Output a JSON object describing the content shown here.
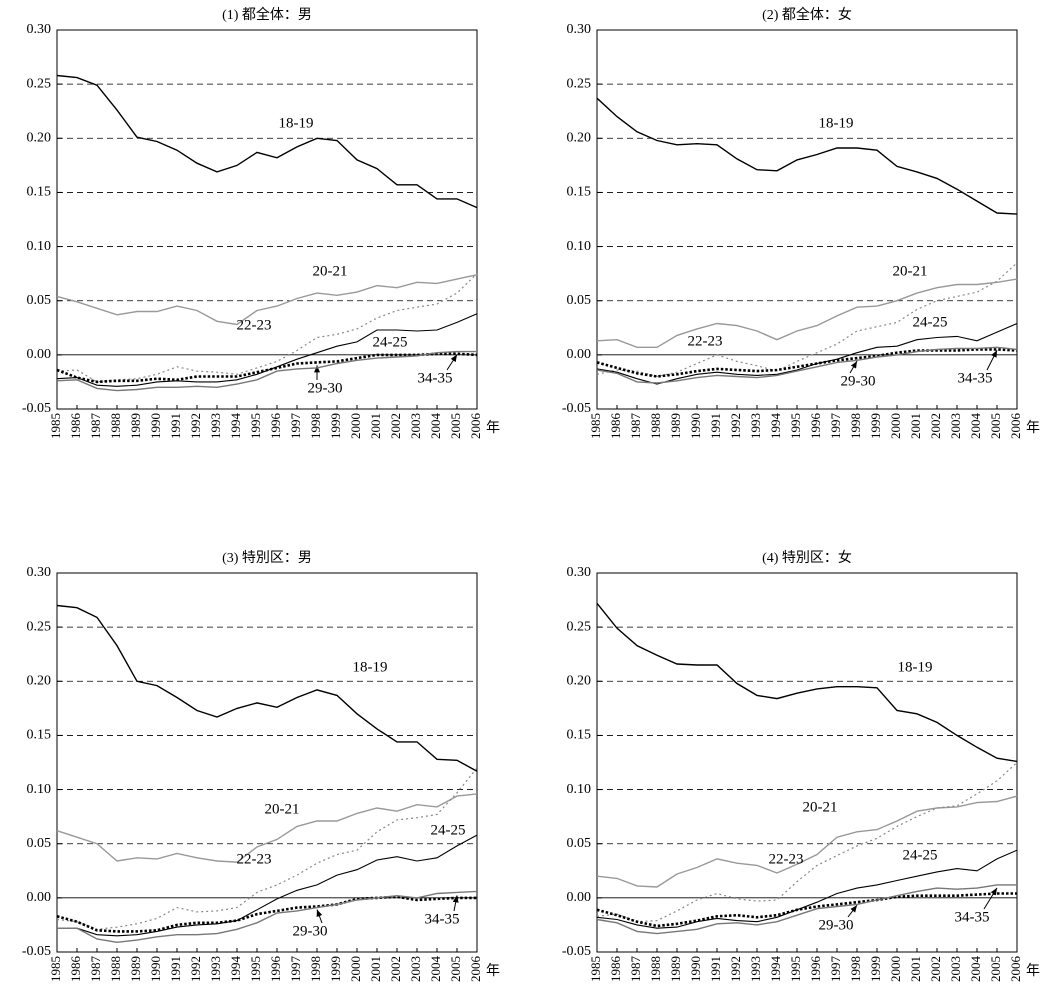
{
  "chart_data": [
    {
      "type": "line",
      "title": "(1) 都全体：男",
      "x_label": "年",
      "categories": [
        "1985",
        "1986",
        "1987",
        "1988",
        "1989",
        "1990",
        "1991",
        "1992",
        "1993",
        "1994",
        "1995",
        "1996",
        "1997",
        "1998",
        "1999",
        "2000",
        "2001",
        "2002",
        "2003",
        "2004",
        "2005",
        "2006"
      ],
      "ylim": [
        -0.05,
        0.3
      ],
      "yticks": [
        -0.05,
        {
          "value": 0,
          "label": "0.00"
        },
        0.05,
        {
          "value": 0.1,
          "label": "0.10"
        },
        0.15,
        {
          "value": 0.2,
          "label": "0.20"
        },
        0.25,
        {
          "value": 0.3,
          "label": "0.30"
        }
      ],
      "grid": true,
      "series": [
        {
          "name": "18-19",
          "color": "#000000",
          "line_style": "solid",
          "values": [
            0.258,
            0.256,
            0.249,
            0.226,
            0.201,
            0.197,
            0.189,
            0.177,
            0.169,
            0.175,
            0.187,
            0.182,
            0.192,
            0.2,
            0.198,
            0.18,
            0.172,
            0.157,
            0.157,
            0.144,
            0.144,
            0.136
          ]
        },
        {
          "name": "20-21",
          "color": "#999999",
          "line_style": "solid",
          "values": [
            0.054,
            0.049,
            0.043,
            0.037,
            0.04,
            0.04,
            0.045,
            0.041,
            0.031,
            0.028,
            0.041,
            0.045,
            0.052,
            0.057,
            0.055,
            0.058,
            0.064,
            0.062,
            0.067,
            0.066,
            0.07,
            0.074
          ]
        },
        {
          "name": "22-23",
          "color": "#888888",
          "line_style": "dotted",
          "values": [
            -0.015,
            -0.014,
            -0.025,
            -0.023,
            -0.022,
            -0.018,
            -0.011,
            -0.015,
            -0.016,
            -0.018,
            -0.012,
            -0.006,
            0.004,
            0.016,
            0.019,
            0.024,
            0.034,
            0.041,
            0.044,
            0.047,
            0.057,
            0.075
          ]
        },
        {
          "name": "24-25",
          "color": "#000000",
          "line_style": "thin",
          "values": [
            -0.022,
            -0.021,
            -0.028,
            -0.029,
            -0.028,
            -0.025,
            -0.024,
            -0.025,
            -0.025,
            -0.023,
            -0.018,
            -0.011,
            -0.004,
            0.002,
            0.008,
            0.012,
            0.023,
            0.023,
            0.022,
            0.023,
            0.03,
            0.038
          ]
        },
        {
          "name": "29-30",
          "color": "#000000",
          "line_style": "heavy-dotted",
          "values": [
            -0.014,
            -0.021,
            -0.025,
            -0.024,
            -0.024,
            -0.022,
            -0.023,
            -0.02,
            -0.02,
            -0.02,
            -0.016,
            -0.012,
            -0.008,
            -0.007,
            -0.006,
            -0.003,
            0.0,
            0.0,
            0.0,
            0.001,
            0.001,
            0.0
          ]
        },
        {
          "name": "34-35",
          "color": "#777777",
          "line_style": "solid",
          "values": [
            -0.024,
            -0.023,
            -0.031,
            -0.033,
            -0.032,
            -0.03,
            -0.03,
            -0.029,
            -0.03,
            -0.027,
            -0.023,
            -0.015,
            -0.013,
            -0.012,
            -0.008,
            -0.005,
            -0.003,
            -0.002,
            -0.001,
            0.002,
            0.003,
            0.003
          ]
        }
      ]
    },
    {
      "type": "line",
      "title": "(2) 都全体：女",
      "x_label": "年",
      "categories": [
        "1985",
        "1986",
        "1987",
        "1988",
        "1989",
        "1990",
        "1991",
        "1992",
        "1993",
        "1994",
        "1995",
        "1996",
        "1997",
        "1998",
        "1999",
        "2000",
        "2001",
        "2002",
        "2003",
        "2004",
        "2005",
        "2006"
      ],
      "ylim": [
        -0.05,
        0.3
      ],
      "yticks": [
        -0.05,
        {
          "value": 0,
          "label": "0.00"
        },
        0.05,
        {
          "value": 0.1,
          "label": "0.10"
        },
        0.15,
        {
          "value": 0.2,
          "label": "0.20"
        },
        0.25,
        {
          "value": 0.3,
          "label": "0.30"
        }
      ],
      "grid": true,
      "series": [
        {
          "name": "18-19",
          "color": "#000000",
          "line_style": "solid",
          "values": [
            0.237,
            0.22,
            0.206,
            0.198,
            0.194,
            0.195,
            0.194,
            0.181,
            0.171,
            0.17,
            0.18,
            0.185,
            0.191,
            0.191,
            0.189,
            0.174,
            0.169,
            0.163,
            0.153,
            0.142,
            0.131,
            0.13
          ]
        },
        {
          "name": "20-21",
          "color": "#999999",
          "line_style": "solid",
          "values": [
            0.013,
            0.014,
            0.007,
            0.007,
            0.018,
            0.024,
            0.029,
            0.027,
            0.022,
            0.014,
            0.022,
            0.027,
            0.036,
            0.044,
            0.045,
            0.05,
            0.057,
            0.062,
            0.065,
            0.065,
            0.067,
            0.07
          ]
        },
        {
          "name": "22-23",
          "color": "#888888",
          "line_style": "dotted",
          "values": [
            -0.018,
            -0.014,
            -0.015,
            -0.02,
            -0.016,
            -0.008,
            0.0,
            -0.006,
            -0.01,
            -0.015,
            -0.006,
            0.002,
            0.01,
            0.022,
            0.026,
            0.03,
            0.042,
            0.05,
            0.054,
            0.058,
            0.068,
            0.085
          ]
        },
        {
          "name": "24-25",
          "color": "#000000",
          "line_style": "thin",
          "values": [
            -0.013,
            -0.016,
            -0.022,
            -0.027,
            -0.022,
            -0.018,
            -0.016,
            -0.018,
            -0.019,
            -0.018,
            -0.014,
            -0.008,
            -0.004,
            0.002,
            0.007,
            0.008,
            0.014,
            0.016,
            0.017,
            0.013,
            0.021,
            0.029
          ]
        },
        {
          "name": "29-30",
          "color": "#000000",
          "line_style": "heavy-dotted",
          "values": [
            -0.007,
            -0.012,
            -0.017,
            -0.02,
            -0.018,
            -0.015,
            -0.013,
            -0.014,
            -0.015,
            -0.014,
            -0.011,
            -0.008,
            -0.005,
            -0.003,
            -0.001,
            0.002,
            0.004,
            0.004,
            0.004,
            0.005,
            0.005,
            0.004
          ]
        },
        {
          "name": "34-35",
          "color": "#777777",
          "line_style": "solid",
          "values": [
            -0.014,
            -0.017,
            -0.025,
            -0.026,
            -0.024,
            -0.021,
            -0.019,
            -0.02,
            -0.021,
            -0.019,
            -0.015,
            -0.011,
            -0.007,
            -0.005,
            -0.002,
            0.0,
            0.003,
            0.005,
            0.006,
            0.006,
            0.007,
            0.005
          ]
        }
      ]
    },
    {
      "type": "line",
      "title": "(3) 特別区：男",
      "x_label": "年",
      "categories": [
        "1985",
        "1986",
        "1987",
        "1988",
        "1989",
        "1990",
        "1991",
        "1992",
        "1993",
        "1994",
        "1995",
        "1996",
        "1997",
        "1998",
        "1999",
        "2000",
        "2001",
        "2002",
        "2003",
        "2004",
        "2005",
        "2006"
      ],
      "ylim": [
        -0.05,
        0.3
      ],
      "yticks": [
        -0.05,
        {
          "value": 0,
          "label": "0.00"
        },
        0.05,
        {
          "value": 0.1,
          "label": "0.10"
        },
        0.15,
        {
          "value": 0.2,
          "label": "0.20"
        },
        0.25,
        {
          "value": 0.3,
          "label": "0.30"
        }
      ],
      "grid": true,
      "series": [
        {
          "name": "18-19",
          "color": "#000000",
          "line_style": "solid",
          "values": [
            0.27,
            0.268,
            0.259,
            0.233,
            0.2,
            0.196,
            0.185,
            0.173,
            0.167,
            0.175,
            0.18,
            0.176,
            0.185,
            0.192,
            0.187,
            0.17,
            0.156,
            0.144,
            0.144,
            0.128,
            0.127,
            0.117
          ]
        },
        {
          "name": "20-21",
          "color": "#999999",
          "line_style": "solid",
          "values": [
            0.062,
            0.056,
            0.05,
            0.034,
            0.037,
            0.036,
            0.041,
            0.037,
            0.034,
            0.033,
            0.047,
            0.054,
            0.066,
            0.071,
            0.071,
            0.078,
            0.083,
            0.08,
            0.086,
            0.084,
            0.094,
            0.096
          ]
        },
        {
          "name": "22-23",
          "color": "#888888",
          "line_style": "dotted",
          "values": [
            -0.02,
            -0.022,
            -0.029,
            -0.027,
            -0.024,
            -0.019,
            -0.009,
            -0.013,
            -0.012,
            -0.009,
            0.005,
            0.012,
            0.021,
            0.032,
            0.04,
            0.044,
            0.061,
            0.072,
            0.074,
            0.077,
            0.097,
            0.12
          ]
        },
        {
          "name": "24-25",
          "color": "#000000",
          "line_style": "thin",
          "values": [
            -0.028,
            -0.028,
            -0.034,
            -0.035,
            -0.034,
            -0.031,
            -0.027,
            -0.025,
            -0.024,
            -0.021,
            -0.011,
            -0.001,
            0.007,
            0.012,
            0.021,
            0.026,
            0.035,
            0.038,
            0.034,
            0.037,
            0.048,
            0.058
          ]
        },
        {
          "name": "29-30",
          "color": "#000000",
          "line_style": "heavy-dotted",
          "values": [
            -0.017,
            -0.022,
            -0.03,
            -0.031,
            -0.031,
            -0.03,
            -0.025,
            -0.023,
            -0.023,
            -0.021,
            -0.015,
            -0.012,
            -0.009,
            -0.008,
            -0.006,
            -0.001,
            0.0,
            0.001,
            -0.002,
            -0.001,
            0.0,
            0.0
          ]
        },
        {
          "name": "34-35",
          "color": "#777777",
          "line_style": "solid",
          "values": [
            -0.028,
            -0.028,
            -0.038,
            -0.041,
            -0.039,
            -0.036,
            -0.034,
            -0.034,
            -0.033,
            -0.029,
            -0.023,
            -0.014,
            -0.012,
            -0.009,
            -0.006,
            -0.002,
            0.0,
            0.002,
            0.0,
            0.004,
            0.005,
            0.006
          ]
        }
      ]
    },
    {
      "type": "line",
      "title": "(4) 特別区：女",
      "x_label": "年",
      "categories": [
        "1985",
        "1986",
        "1987",
        "1988",
        "1989",
        "1990",
        "1991",
        "1992",
        "1993",
        "1994",
        "1995",
        "1996",
        "1997",
        "1998",
        "1999",
        "2000",
        "2001",
        "2002",
        "2003",
        "2004",
        "2005",
        "2006"
      ],
      "ylim": [
        -0.05,
        0.3
      ],
      "yticks": [
        -0.05,
        {
          "value": 0,
          "label": "0.00"
        },
        0.05,
        {
          "value": 0.1,
          "label": "0.10"
        },
        0.15,
        {
          "value": 0.2,
          "label": "0.20"
        },
        0.25,
        {
          "value": 0.3,
          "label": "0.30"
        }
      ],
      "grid": true,
      "series": [
        {
          "name": "18-19",
          "color": "#000000",
          "line_style": "solid",
          "values": [
            0.272,
            0.249,
            0.233,
            0.224,
            0.216,
            0.215,
            0.215,
            0.198,
            0.187,
            0.184,
            0.189,
            0.193,
            0.195,
            0.195,
            0.194,
            0.173,
            0.17,
            0.162,
            0.15,
            0.139,
            0.129,
            0.126
          ]
        },
        {
          "name": "20-21",
          "color": "#999999",
          "line_style": "solid",
          "values": [
            0.02,
            0.018,
            0.011,
            0.01,
            0.022,
            0.028,
            0.036,
            0.032,
            0.03,
            0.023,
            0.031,
            0.04,
            0.056,
            0.061,
            0.063,
            0.071,
            0.08,
            0.083,
            0.084,
            0.088,
            0.089,
            0.094
          ]
        },
        {
          "name": "22-23",
          "color": "#888888",
          "line_style": "dotted",
          "values": [
            -0.017,
            -0.015,
            -0.022,
            -0.021,
            -0.012,
            -0.002,
            0.004,
            -0.001,
            -0.003,
            -0.002,
            0.015,
            0.03,
            0.039,
            0.048,
            0.055,
            0.066,
            0.075,
            0.083,
            0.085,
            0.096,
            0.108,
            0.125
          ]
        },
        {
          "name": "24-25",
          "color": "#000000",
          "line_style": "thin",
          "values": [
            -0.018,
            -0.02,
            -0.025,
            -0.028,
            -0.027,
            -0.022,
            -0.019,
            -0.021,
            -0.022,
            -0.018,
            -0.011,
            -0.004,
            0.004,
            0.009,
            0.012,
            0.016,
            0.02,
            0.024,
            0.027,
            0.025,
            0.036,
            0.044
          ]
        },
        {
          "name": "29-30",
          "color": "#000000",
          "line_style": "heavy-dotted",
          "values": [
            -0.011,
            -0.016,
            -0.022,
            -0.026,
            -0.024,
            -0.021,
            -0.017,
            -0.016,
            -0.018,
            -0.016,
            -0.011,
            -0.008,
            -0.006,
            -0.004,
            -0.002,
            0.001,
            0.002,
            0.002,
            0.002,
            0.003,
            0.004,
            0.004
          ]
        },
        {
          "name": "34-35",
          "color": "#777777",
          "line_style": "solid",
          "values": [
            -0.02,
            -0.023,
            -0.031,
            -0.033,
            -0.031,
            -0.029,
            -0.024,
            -0.023,
            -0.025,
            -0.022,
            -0.016,
            -0.01,
            -0.008,
            -0.006,
            -0.002,
            0.002,
            0.006,
            0.009,
            0.008,
            0.009,
            0.012,
            0.012
          ]
        }
      ]
    }
  ]
}
